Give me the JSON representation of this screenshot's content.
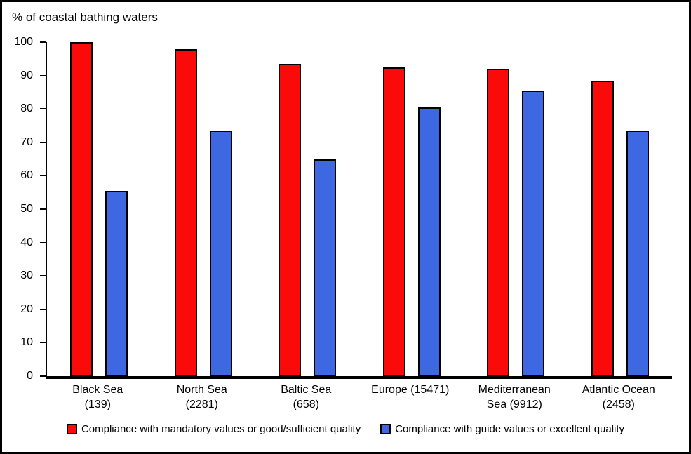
{
  "page": {
    "background": "#ffffff",
    "border_color": "#000000"
  },
  "title": "% of coastal bathing waters",
  "chart_data": {
    "type": "bar",
    "title": "% of coastal bathing waters",
    "ylabel": "% of coastal bathing waters",
    "xlabel": "",
    "grid": false,
    "legend_position": "bottom",
    "ylim": [
      0,
      100
    ],
    "yticks": [
      0,
      10,
      20,
      30,
      40,
      50,
      60,
      70,
      80,
      90,
      100
    ],
    "categories": [
      [
        "Black Sea",
        "(139)"
      ],
      [
        "North Sea",
        "(2281)"
      ],
      [
        "Baltic Sea",
        "(658)"
      ],
      [
        "Europe (15471)"
      ],
      [
        "Mediterranean",
        "Sea (9912)"
      ],
      [
        "Atlantic Ocean",
        "(2458)"
      ]
    ],
    "series": [
      {
        "name": "Compliance with mandatory values or good/sufficient quality",
        "color": "#fb0a0a",
        "values": [
          100,
          98,
          93.5,
          92.5,
          92,
          88.5
        ]
      },
      {
        "name": "Compliance with guide values or excellent quality",
        "color": "#3e68e1",
        "values": [
          55.5,
          73.5,
          65,
          80.5,
          85.5,
          73.5
        ]
      }
    ]
  }
}
